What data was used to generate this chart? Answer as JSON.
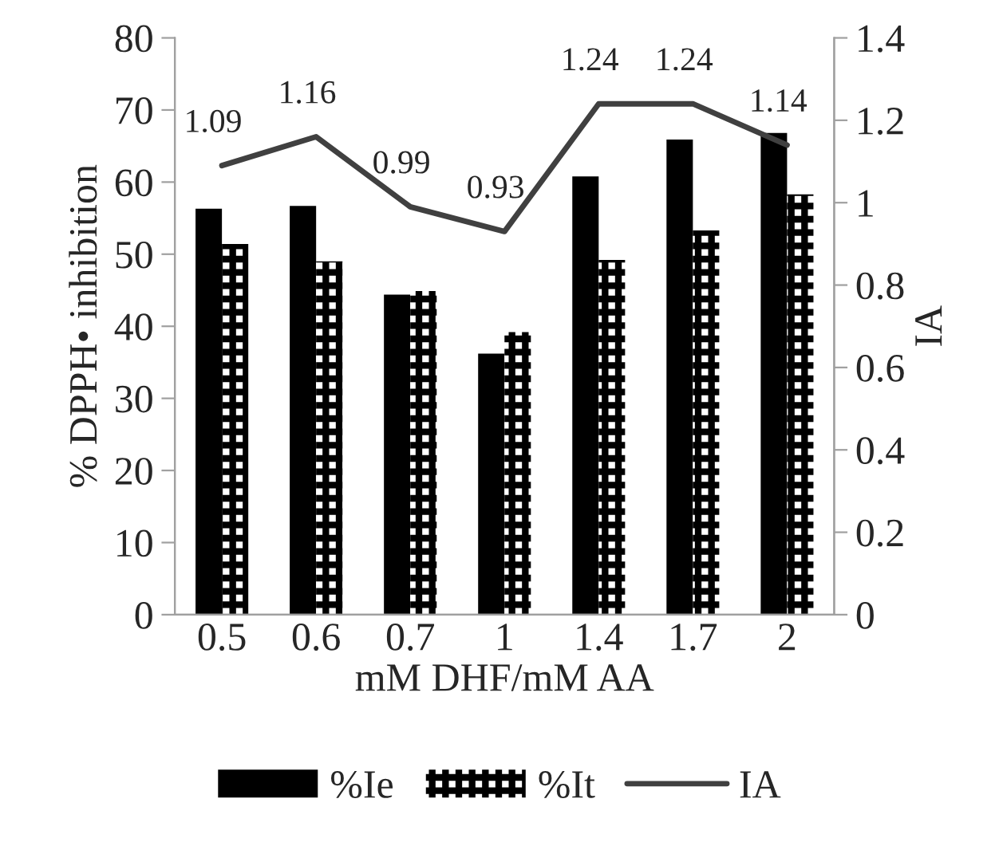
{
  "chart_data": {
    "type": "bar",
    "xlabel": "mM DHF/mM AA",
    "ylabel": "% DPPH• inhibition",
    "y2label": "IA",
    "categories": [
      "0.5",
      "0.6",
      "0.7",
      "1",
      "1.4",
      "1.7",
      "2"
    ],
    "series": [
      {
        "name": "%Ie",
        "color": "#000000",
        "values": [
          56.3,
          56.7,
          44.4,
          36.2,
          60.8,
          65.9,
          66.8
        ]
      },
      {
        "name": "%It",
        "color": "#ffffff",
        "values": [
          51.4,
          49.0,
          44.9,
          39.2,
          49.2,
          53.3,
          58.3
        ]
      },
      {
        "name": "IA",
        "type": "line",
        "axis": "y2",
        "color": "#404040",
        "values": [
          1.09,
          1.16,
          0.99,
          0.93,
          1.24,
          1.24,
          1.14
        ],
        "data_labels": true
      }
    ],
    "ylim": [
      0,
      80
    ],
    "yticks": [
      0,
      10,
      20,
      30,
      40,
      50,
      60,
      70,
      80
    ],
    "y2lim": [
      0,
      1.4
    ],
    "y2ticks": [
      0,
      0.2,
      0.4,
      0.6,
      0.8,
      1,
      1.2,
      1.4
    ],
    "legend": "bottom",
    "grid": false
  }
}
